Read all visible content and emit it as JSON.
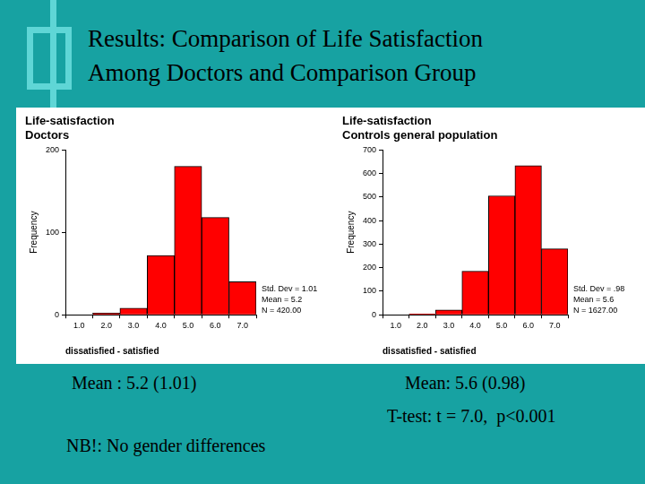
{
  "slide": {
    "title": [
      "Results: Comparison of Life Satisfaction",
      "Among Doctors and Comparison Group"
    ],
    "texts": {
      "mean_doctors": "Mean : 5.2 (1.01)",
      "mean_controls": "Mean: 5.6 (0.98)",
      "test": "T-test: t = 7.0,  p<0.001",
      "note": "NB!: No gender differences"
    }
  },
  "chart_data": [
    {
      "type": "histogram",
      "title": [
        "Life-satisfaction",
        "Doctors"
      ],
      "xlabel": "dissatisfied - satisfied",
      "ylabel": "Frequency",
      "bins": [
        1.5,
        2.5,
        3.5,
        4.5,
        5.5,
        6.5,
        7.5
      ],
      "values": [
        2,
        8,
        72,
        180,
        118,
        40
      ],
      "color": "#ff0000",
      "xlim": [
        0.5,
        7.5
      ],
      "xticks": [
        {
          "value": 1,
          "label": "1.0"
        },
        {
          "value": 2,
          "label": "2.0"
        },
        {
          "value": 3,
          "label": "3.0"
        },
        {
          "value": 4,
          "label": "4.0"
        },
        {
          "value": 5,
          "label": "5.0"
        },
        {
          "value": 6,
          "label": "6.0"
        },
        {
          "value": 7,
          "label": "7.0"
        }
      ],
      "ylim": [
        0,
        200
      ],
      "yticks": [
        0,
        100,
        200
      ],
      "grid": false,
      "annotations": [
        "Std. Dev = 1.01",
        "Mean = 5.2",
        "N = 420.00"
      ]
    },
    {
      "type": "histogram",
      "title": [
        "Life-satisfaction",
        "Controls general population"
      ],
      "xlabel": "dissatisfied - satisfied",
      "ylabel": "Frequency",
      "bins": [
        1.5,
        2.5,
        3.5,
        4.5,
        5.5,
        6.5,
        7.5
      ],
      "values": [
        4,
        20,
        185,
        505,
        633,
        280
      ],
      "color": "#ff0000",
      "xlim": [
        0.5,
        7.5
      ],
      "xticks": [
        {
          "value": 1,
          "label": "1.0"
        },
        {
          "value": 2,
          "label": "2.0"
        },
        {
          "value": 3,
          "label": "3.0"
        },
        {
          "value": 4,
          "label": "4.0"
        },
        {
          "value": 5,
          "label": "5.0"
        },
        {
          "value": 6,
          "label": "6.0"
        },
        {
          "value": 7,
          "label": "7.0"
        }
      ],
      "ylim": [
        0,
        700
      ],
      "yticks": [
        0,
        100,
        200,
        300,
        400,
        500,
        600,
        700
      ],
      "grid": false,
      "annotations": [
        "Std. Dev = .98",
        "Mean = 5.6",
        "N = 1627.00"
      ]
    }
  ]
}
